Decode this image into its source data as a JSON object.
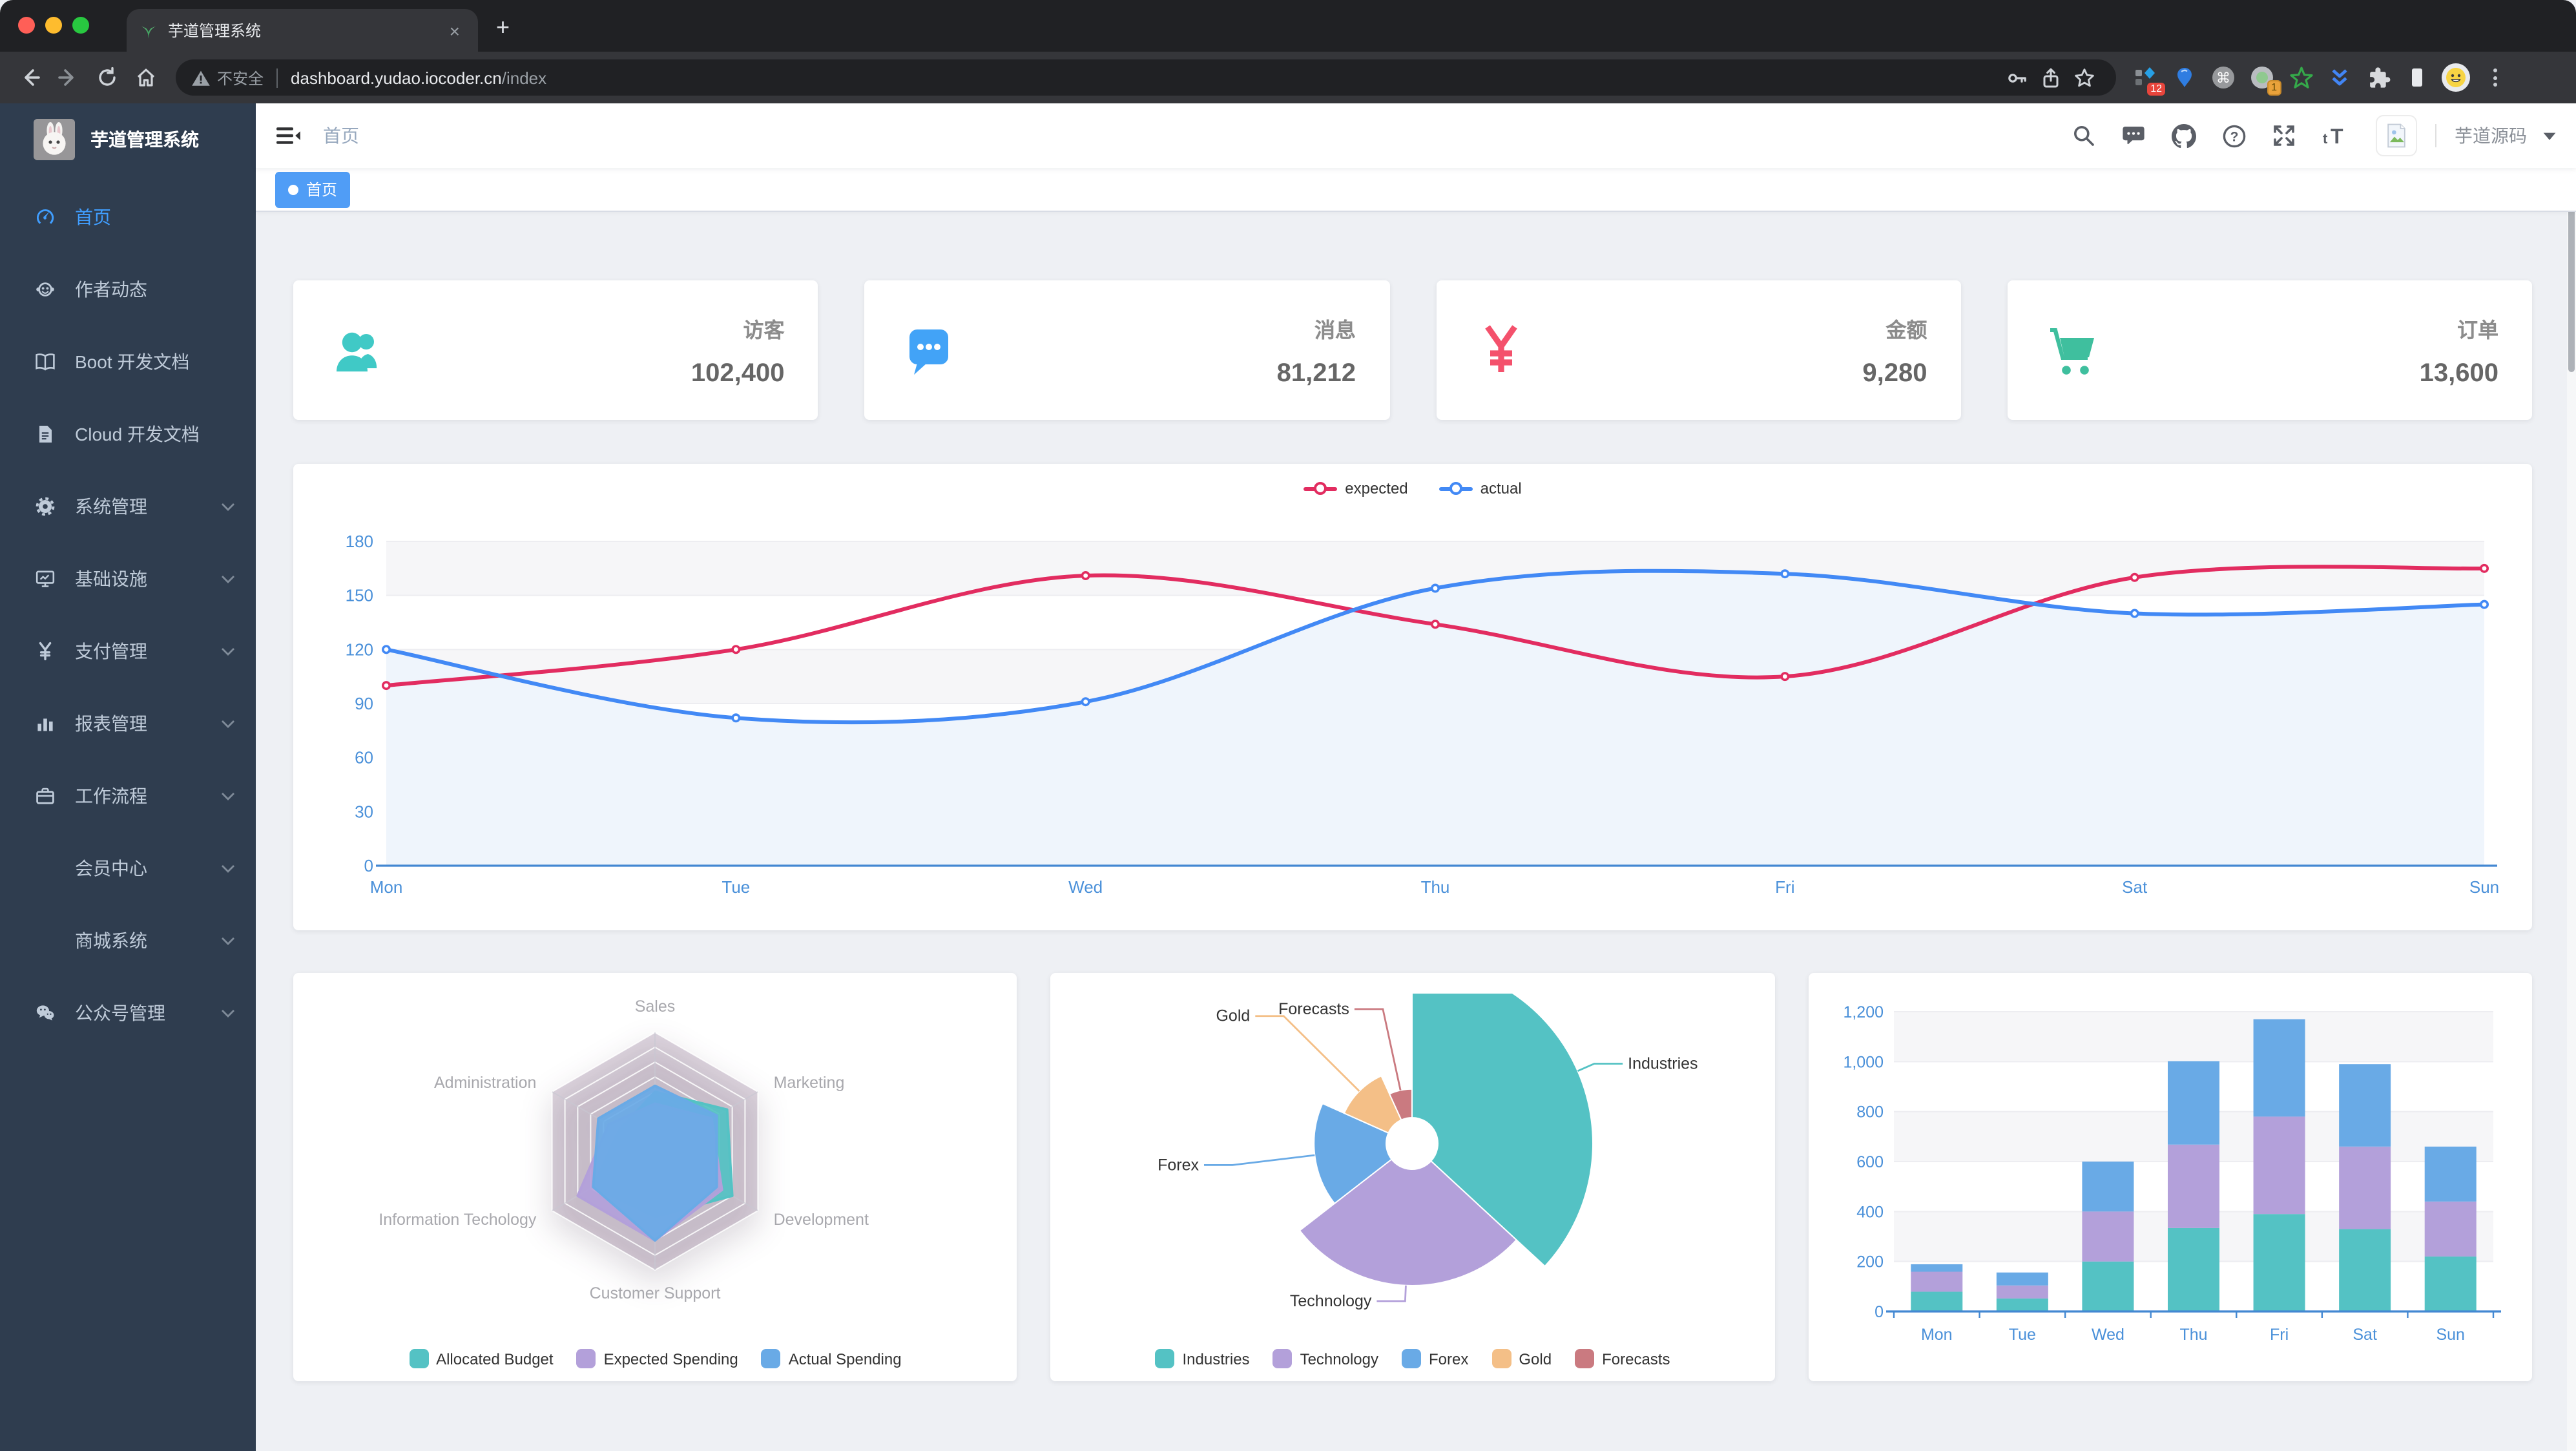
{
  "browser": {
    "tab_title": "芋道管理系统",
    "new_tab_glyph": "+",
    "close_glyph": "×",
    "security_label": "不安全",
    "url_host": "dashboard.yudao.iocoder.cn",
    "url_path": "/index",
    "extension_badge_1": "12",
    "extension_badge_2": "1"
  },
  "sidebar": {
    "title": "芋道管理系统",
    "items": [
      {
        "label": "首页",
        "active": true
      },
      {
        "label": "作者动态"
      },
      {
        "label": "Boot 开发文档"
      },
      {
        "label": "Cloud 开发文档"
      },
      {
        "label": "系统管理"
      },
      {
        "label": "基础设施"
      },
      {
        "label": "支付管理"
      },
      {
        "label": "报表管理"
      },
      {
        "label": "工作流程"
      },
      {
        "label": "会员中心"
      },
      {
        "label": "商城系统"
      },
      {
        "label": "公众号管理"
      }
    ]
  },
  "navbar": {
    "breadcrumb": "首页",
    "username": "芋道源码"
  },
  "tags": {
    "active_tag": "首页"
  },
  "stats": [
    {
      "label": "访客",
      "value": "102,400",
      "color": "#40c9c6"
    },
    {
      "label": "消息",
      "value": "81,212",
      "color": "#42a3f7"
    },
    {
      "label": "金额",
      "value": "9,280",
      "color": "#f4516c"
    },
    {
      "label": "订单",
      "value": "13,600",
      "color": "#3fbf9e"
    }
  ],
  "accent_color": "#409EFF",
  "chart_data": [
    {
      "type": "line",
      "x": [
        "Mon",
        "Tue",
        "Wed",
        "Thu",
        "Fri",
        "Sat",
        "Sun"
      ],
      "yticks": [
        0,
        30,
        60,
        90,
        120,
        150,
        180
      ],
      "ylim": [
        0,
        180
      ],
      "grid": true,
      "legend_position": "top",
      "axis_color": "#4a90d9",
      "axis_line_color": "#4388d2",
      "series": [
        {
          "name": "expected",
          "color": "#e22c60",
          "values": [
            100,
            120,
            161,
            134,
            105,
            160,
            165
          ]
        },
        {
          "name": "actual",
          "color": "#4289f5",
          "area": "#eff5fc",
          "values": [
            120,
            82,
            91,
            154,
            162,
            140,
            145
          ]
        }
      ]
    },
    {
      "type": "radar",
      "legend_position": "bottom",
      "grid_fill": "rgba(134,103,137,0.28)",
      "indicators": [
        {
          "name": "Sales",
          "max": 10000
        },
        {
          "name": "Administration",
          "max": 20000
        },
        {
          "name": "Information Techology",
          "max": 20000
        },
        {
          "name": "Customer Support",
          "max": 20000
        },
        {
          "name": "Development",
          "max": 20000
        },
        {
          "name": "Marketing",
          "max": 20000
        }
      ],
      "series": [
        {
          "name": "Allocated Budget",
          "color": "#54c2c4",
          "values": [
            5000,
            7000,
            12000,
            11000,
            15000,
            14000
          ]
        },
        {
          "name": "Expected Spending",
          "color": "#b3a0da",
          "values": [
            4000,
            9000,
            15000,
            15000,
            13000,
            11000
          ]
        },
        {
          "name": "Actual Spending",
          "color": "#69aae6",
          "values": [
            5500,
            11000,
            12000,
            15000,
            12000,
            12000
          ]
        }
      ]
    },
    {
      "type": "pie",
      "rose": "radius",
      "legend_position": "bottom",
      "label_color": "#333333",
      "items": [
        {
          "name": "Industries",
          "value": 320,
          "color": "#54c2c4"
        },
        {
          "name": "Technology",
          "value": 240,
          "color": "#b3a0da"
        },
        {
          "name": "Forex",
          "value": 149,
          "color": "#69aae6"
        },
        {
          "name": "Gold",
          "value": 100,
          "color": "#f4bf87"
        },
        {
          "name": "Forecasts",
          "value": 59,
          "color": "#ca7a80"
        }
      ]
    },
    {
      "type": "bar",
      "stacked": true,
      "categories": [
        "Mon",
        "Tue",
        "Wed",
        "Thu",
        "Fri",
        "Sat",
        "Sun"
      ],
      "yticks": [
        "0",
        "200",
        "400",
        "600",
        "800",
        "1,000",
        "1,200"
      ],
      "ylim": [
        0,
        1200
      ],
      "axis_color": "#4a90d9",
      "axis_line_color": "#4388d2",
      "series": [
        {
          "color": "#54c2c4",
          "values": [
            79,
            52,
            200,
            334,
            390,
            330,
            220
          ]
        },
        {
          "color": "#b3a0da",
          "values": [
            80,
            52,
            200,
            334,
            390,
            330,
            220
          ]
        },
        {
          "color": "#69aae6",
          "values": [
            30,
            52,
            200,
            334,
            390,
            330,
            220
          ]
        }
      ]
    }
  ]
}
